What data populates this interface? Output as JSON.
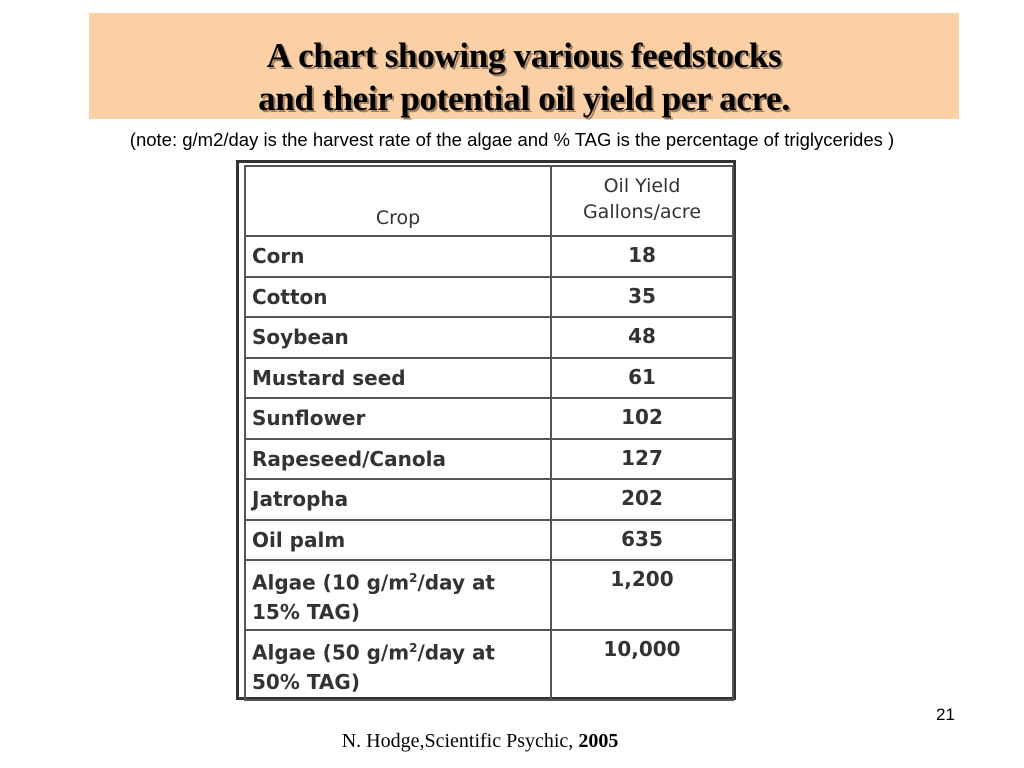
{
  "title": {
    "line1": "A chart showing various feedstocks",
    "line2": "and their potential oil yield per acre."
  },
  "note": "(note: g/m2/day is the harvest rate of the algae and % TAG is the percentage of triglycerides )",
  "table": {
    "col_crop": "Crop",
    "col_yield_line1": "Oil Yield",
    "col_yield_line2": "Gallons/acre",
    "rows": [
      {
        "crop": "Corn",
        "yield": "18"
      },
      {
        "crop": "Cotton",
        "yield": "35"
      },
      {
        "crop": "Soybean",
        "yield": "48"
      },
      {
        "crop": "Mustard seed",
        "yield": "61"
      },
      {
        "crop": "Sunflower",
        "yield": "102"
      },
      {
        "crop": "Rapeseed/Canola",
        "yield": "127"
      },
      {
        "crop": "Jatropha",
        "yield": "202"
      },
      {
        "crop": "Oil palm",
        "yield": "635"
      },
      {
        "crop_a": "Algae (10 g/m",
        "crop_sup": "2",
        "crop_b": "/day at",
        "crop_c": "15% TAG)",
        "yield": "1,200"
      },
      {
        "crop_a": "Algae (50 g/m",
        "crop_sup": "2",
        "crop_b": "/day at",
        "crop_c": "50% TAG)",
        "yield": "10,000"
      }
    ]
  },
  "page_number": "21",
  "citation": {
    "text": "N. Hodge,Scientific Psychic, ",
    "year": "2005"
  }
}
